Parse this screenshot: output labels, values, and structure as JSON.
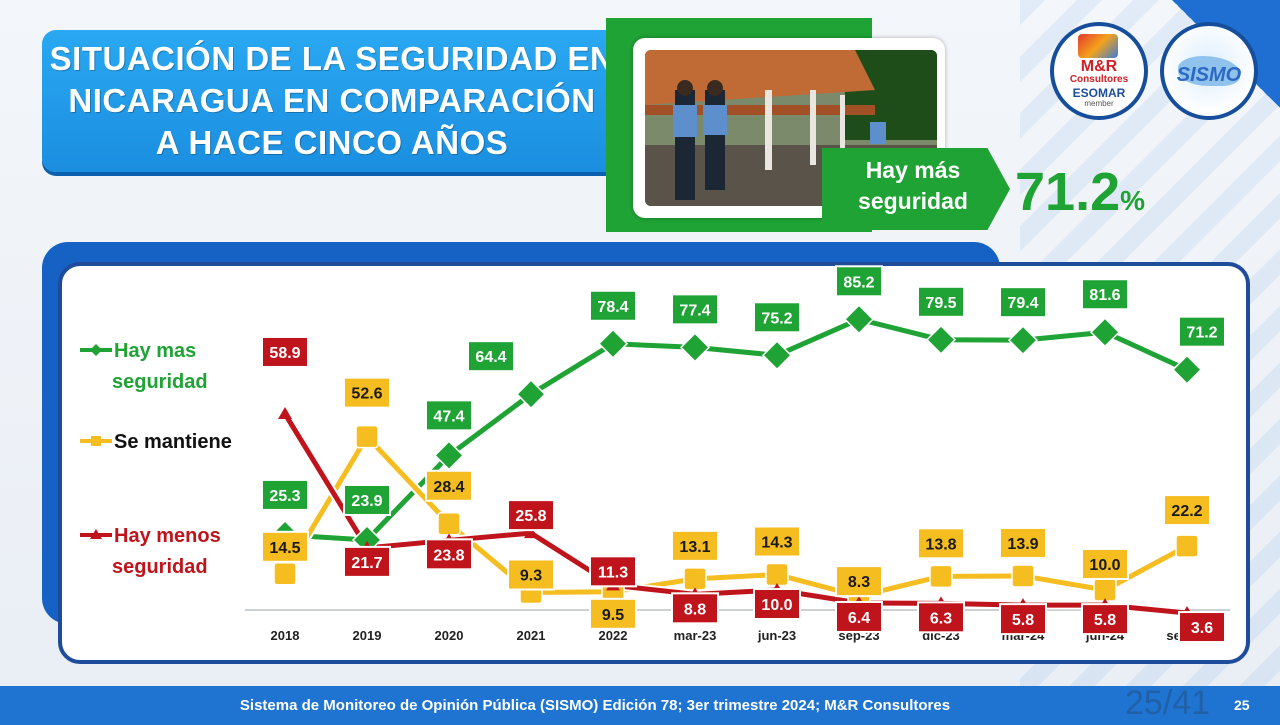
{
  "title": "SITUACIÓN DE LA SEGURIDAD EN\nNICARAGUA EN COMPARACIÓN\nA HACE CINCO AÑOS",
  "highlight": {
    "label": "Hay más seguridad",
    "value": "71.2",
    "unit": "%",
    "color": "#1fa335"
  },
  "logos": {
    "mr": {
      "line1": "M&R",
      "line2": "Consultores",
      "line3": "ESOMAR",
      "line4": "member"
    },
    "sismo": {
      "text": "SISMO"
    }
  },
  "footer": {
    "text": "Sistema de Monitoreo de Opinión Pública (SISMO) Edición 78; 3er trimestre 2024; M&R Consultores",
    "page_fraction": "25/41",
    "page_number": "25"
  },
  "chart_data": {
    "type": "line",
    "categories": [
      "2018",
      "2019",
      "2020",
      "2021",
      "2022",
      "mar-23",
      "jun-23",
      "sep-23",
      "dic-23",
      "mar-24",
      "jun-24",
      "sep-24"
    ],
    "series": [
      {
        "name": "Hay mas seguridad",
        "color": "#1fa335",
        "marker": "diamond",
        "values": [
          25.3,
          23.9,
          47.4,
          64.4,
          78.4,
          77.4,
          75.2,
          85.2,
          79.5,
          79.4,
          81.6,
          71.2
        ]
      },
      {
        "name": "Se mantiene",
        "color": "#f5bd1f",
        "marker": "square",
        "values": [
          14.5,
          52.6,
          28.4,
          9.3,
          9.5,
          13.1,
          14.3,
          8.3,
          13.8,
          13.9,
          10.0,
          22.2
        ]
      },
      {
        "name": "Hay menos seguridad",
        "color": "#c0141c",
        "marker": "triangle",
        "values": [
          58.9,
          21.7,
          23.8,
          25.8,
          11.3,
          8.8,
          10.0,
          6.4,
          6.3,
          5.8,
          5.8,
          3.6
        ]
      }
    ],
    "legend_position": "left",
    "grid": false
  }
}
